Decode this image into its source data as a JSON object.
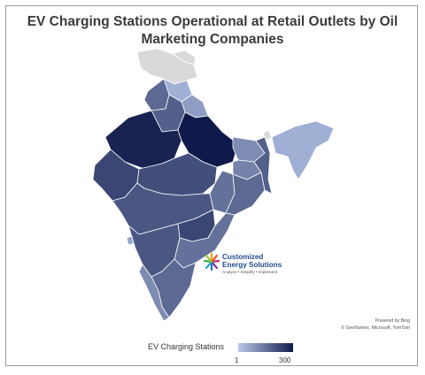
{
  "title": "EV Charging Stations Operational at Retail Outlets by Oil Marketing Companies",
  "colors": {
    "no_data": "#d9d9d9",
    "scale_min": "#b9c9ec",
    "scale_max": "#0f1a4a",
    "border": "#ffffff"
  },
  "legend": {
    "title": "EV Charging Stations",
    "min_label": "1",
    "max_label": "300"
  },
  "logo": {
    "name_line1": "Customized",
    "name_line2": "Energy Solutions",
    "tagline": "Analyze • Simplify • Implement"
  },
  "attribution": {
    "line1": "Powered by Bing",
    "line2": "© GeoNames, Microsoft, TomTom"
  },
  "regions": [
    {
      "name": "jammu-kashmir",
      "shade": "no_data"
    },
    {
      "name": "ladakh",
      "shade": "no_data"
    },
    {
      "name": "himachal-pradesh",
      "shade": 0.15
    },
    {
      "name": "punjab",
      "shade": 0.55
    },
    {
      "name": "uttarakhand",
      "shade": 0.25
    },
    {
      "name": "haryana",
      "shade": 0.6
    },
    {
      "name": "rajasthan",
      "shade": 0.95
    },
    {
      "name": "uttar-pradesh",
      "shade": 1.0
    },
    {
      "name": "bihar",
      "shade": 0.35
    },
    {
      "name": "gujarat",
      "shade": 0.75
    },
    {
      "name": "madhya-pradesh",
      "shade": 0.7
    },
    {
      "name": "chhattisgarh",
      "shade": 0.5
    },
    {
      "name": "jharkhand",
      "shade": 0.4
    },
    {
      "name": "odisha",
      "shade": 0.55
    },
    {
      "name": "west-bengal",
      "shade": 0.6
    },
    {
      "name": "sikkim",
      "shade": "no_data"
    },
    {
      "name": "northeast",
      "shade": 0.15
    },
    {
      "name": "maharashtra",
      "shade": 0.65
    },
    {
      "name": "telangana",
      "shade": 0.75
    },
    {
      "name": "andhra-pradesh",
      "shade": 0.5
    },
    {
      "name": "karnataka",
      "shade": 0.65
    },
    {
      "name": "goa",
      "shade": 0.2
    },
    {
      "name": "tamil-nadu",
      "shade": 0.55
    },
    {
      "name": "kerala",
      "shade": 0.35
    }
  ]
}
